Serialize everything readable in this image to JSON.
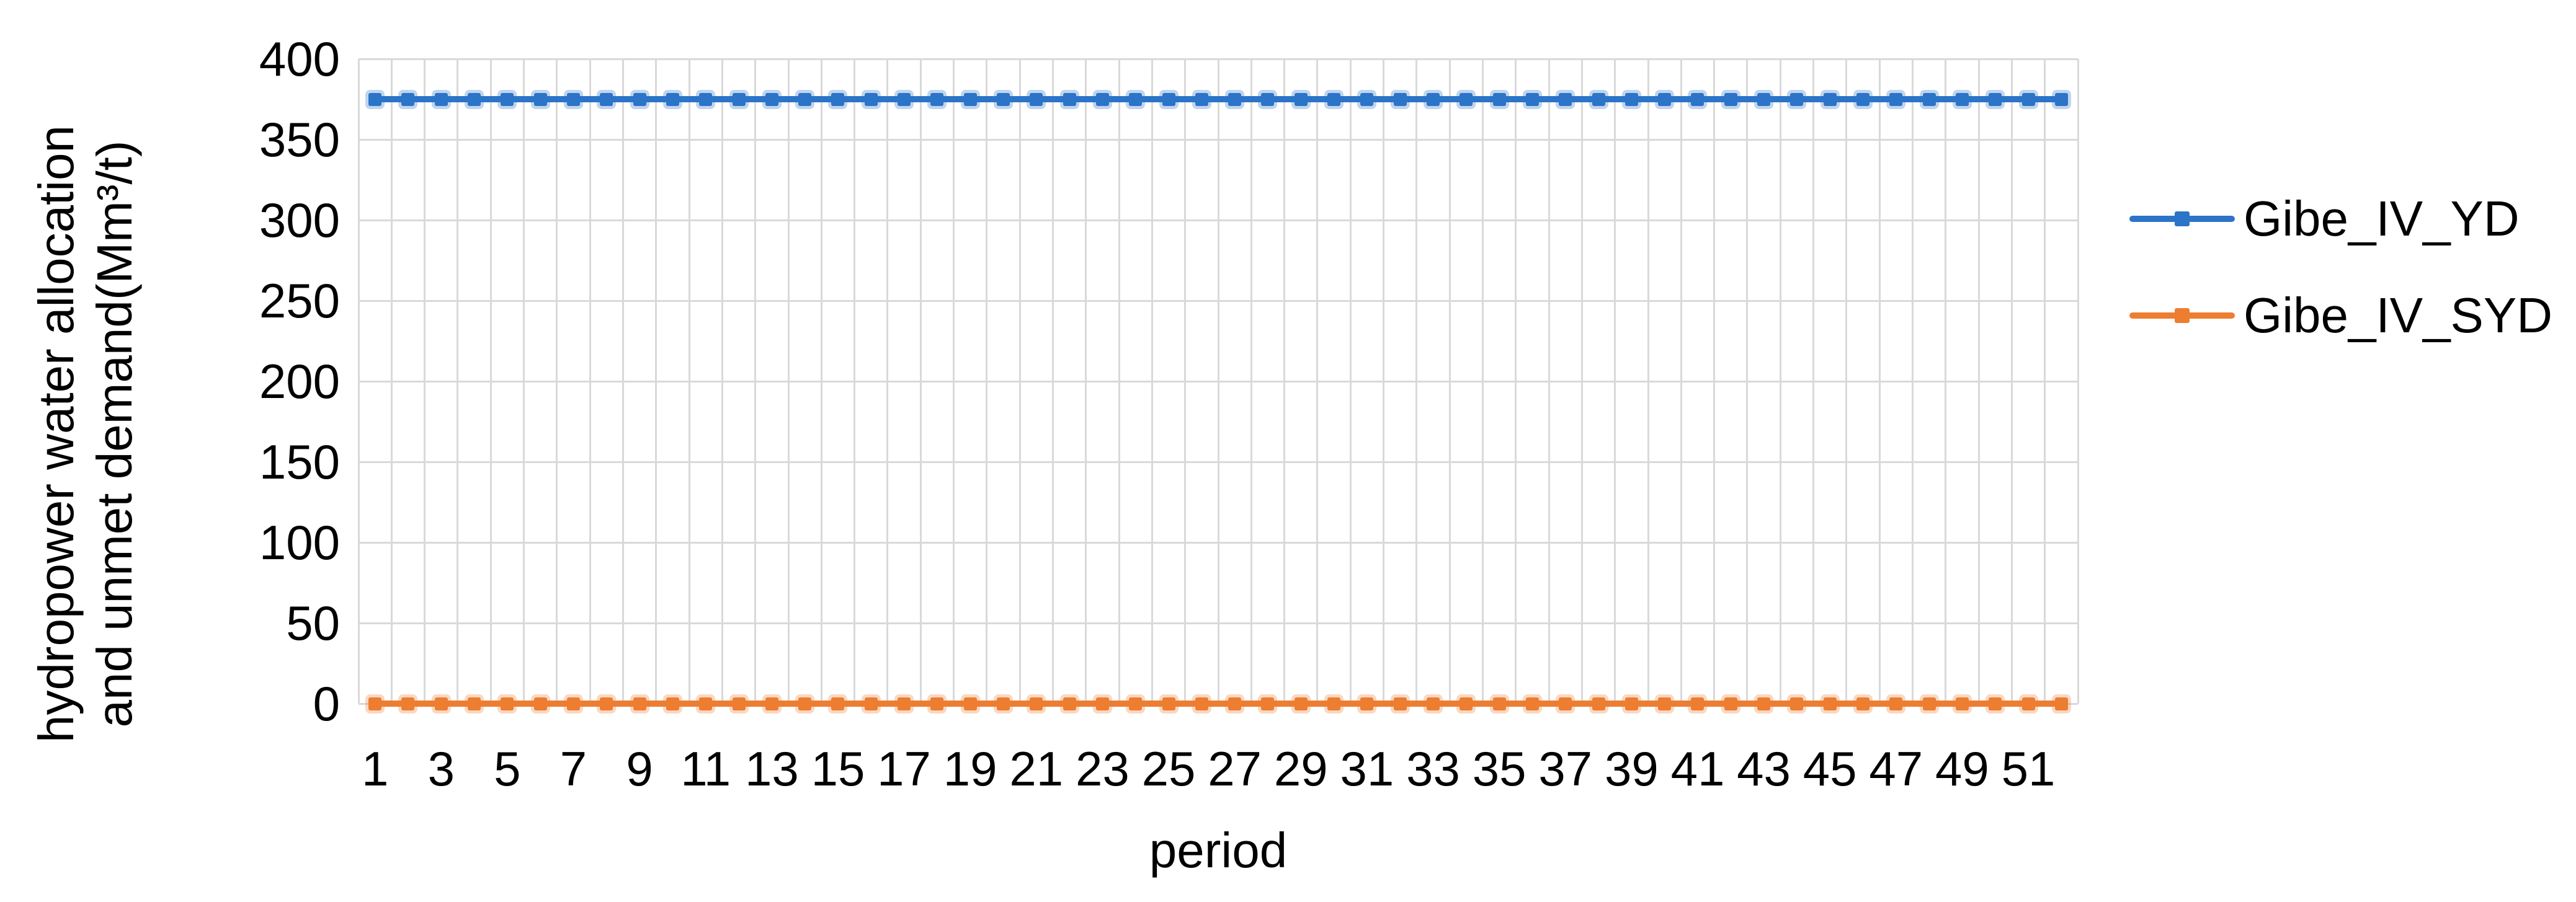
{
  "figure": {
    "background": "#FFFFFF",
    "gridline_color": "#D9D9D9",
    "text_color": "#000000"
  },
  "chart_data": {
    "type": "line",
    "title": "",
    "xlabel": "period",
    "ylabel_lines": [
      "hydropower water allocation",
      "and unmet demand(Mm³/t)"
    ],
    "ylim": [
      0,
      400
    ],
    "y_ticks": [
      400,
      350,
      300,
      250,
      200,
      150,
      100,
      50,
      0
    ],
    "x": [
      1,
      2,
      3,
      4,
      5,
      6,
      7,
      8,
      9,
      10,
      11,
      12,
      13,
      14,
      15,
      16,
      17,
      18,
      19,
      20,
      21,
      22,
      23,
      24,
      25,
      26,
      27,
      28,
      29,
      30,
      31,
      32,
      33,
      34,
      35,
      36,
      37,
      38,
      39,
      40,
      41,
      42,
      43,
      44,
      45,
      46,
      47,
      48,
      49,
      50,
      51,
      52
    ],
    "x_tick_labels": [
      "1",
      "3",
      "5",
      "7",
      "9",
      "11",
      "13",
      "15",
      "17",
      "19",
      "21",
      "23",
      "25",
      "27",
      "29",
      "31",
      "33",
      "35",
      "37",
      "39",
      "41",
      "43",
      "45",
      "47",
      "49",
      "51"
    ],
    "grid": "both",
    "legend_position": "right",
    "series": [
      {
        "name": "Gibe_IV_YD",
        "color": "#2B74C8",
        "marker": "square",
        "values": [
          375,
          375,
          375,
          375,
          375,
          375,
          375,
          375,
          375,
          375,
          375,
          375,
          375,
          375,
          375,
          375,
          375,
          375,
          375,
          375,
          375,
          375,
          375,
          375,
          375,
          375,
          375,
          375,
          375,
          375,
          375,
          375,
          375,
          375,
          375,
          375,
          375,
          375,
          375,
          375,
          375,
          375,
          375,
          375,
          375,
          375,
          375,
          375,
          375,
          375,
          375,
          375
        ]
      },
      {
        "name": "Gibe_IV_SYD",
        "color": "#ED7D31",
        "marker": "square",
        "values": [
          0,
          0,
          0,
          0,
          0,
          0,
          0,
          0,
          0,
          0,
          0,
          0,
          0,
          0,
          0,
          0,
          0,
          0,
          0,
          0,
          0,
          0,
          0,
          0,
          0,
          0,
          0,
          0,
          0,
          0,
          0,
          0,
          0,
          0,
          0,
          0,
          0,
          0,
          0,
          0,
          0,
          0,
          0,
          0,
          0,
          0,
          0,
          0,
          0,
          0,
          0,
          0
        ]
      }
    ]
  }
}
